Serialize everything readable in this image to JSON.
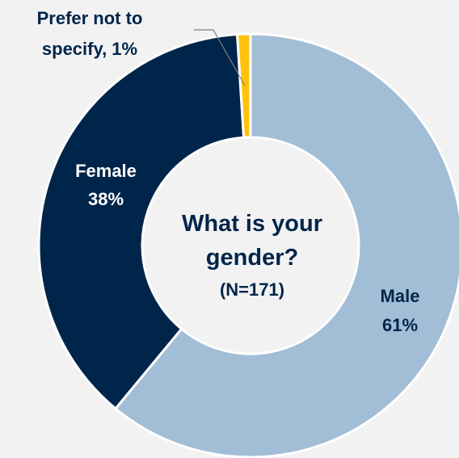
{
  "chart_data": {
    "type": "pie",
    "variant": "donut",
    "title": "What is your gender?",
    "subtitle": "(N=171)",
    "categories": [
      "Male",
      "Female",
      "Prefer not to specify"
    ],
    "values": [
      61,
      38,
      1
    ],
    "colors": [
      "#a2bdd6",
      "#00254a",
      "#ffc20e"
    ],
    "labels": [
      {
        "name": "Male",
        "pct": "61%"
      },
      {
        "name": "Female",
        "pct": "38%"
      },
      {
        "name_line1": "Prefer not to",
        "name_line2": "specify, 1%"
      }
    ],
    "legend": "none"
  }
}
